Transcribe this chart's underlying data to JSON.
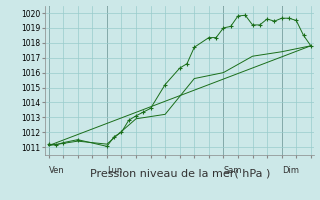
{
  "background_color": "#cce8e8",
  "grid_color": "#99cccc",
  "line_color": "#1a6e1a",
  "title": "Pression niveau de la mer( hPa )",
  "title_fontsize": 8,
  "ylim": [
    1010.5,
    1020.5
  ],
  "yticks": [
    1011,
    1012,
    1013,
    1014,
    1015,
    1016,
    1017,
    1018,
    1019,
    1020
  ],
  "ytick_fontsize": 5.5,
  "day_labels": [
    "Ven",
    "Lun",
    "Sam",
    "Dim"
  ],
  "day_positions": [
    0,
    8,
    24,
    32
  ],
  "xlim": [
    -0.5,
    36.5
  ],
  "series1_x": [
    0,
    1,
    2,
    4,
    8,
    9,
    10,
    11,
    12,
    13,
    14,
    16,
    18,
    19,
    20,
    22,
    23,
    24,
    25,
    26,
    27,
    28,
    29,
    30,
    31,
    32,
    33,
    34,
    35,
    36
  ],
  "series1_y": [
    1011.2,
    1011.15,
    1011.3,
    1011.5,
    1011.05,
    1011.7,
    1012.0,
    1012.8,
    1013.1,
    1013.35,
    1013.6,
    1015.2,
    1016.3,
    1016.6,
    1017.7,
    1018.35,
    1018.35,
    1019.0,
    1019.1,
    1019.8,
    1019.85,
    1019.2,
    1019.2,
    1019.6,
    1019.45,
    1019.65,
    1019.65,
    1019.5,
    1018.5,
    1017.8
  ],
  "series2_x": [
    0,
    4,
    8,
    12,
    16,
    20,
    24,
    28,
    32,
    36
  ],
  "series2_y": [
    1011.1,
    1011.4,
    1011.2,
    1012.9,
    1013.2,
    1015.6,
    1016.0,
    1017.1,
    1017.4,
    1017.8
  ],
  "series3_x": [
    0,
    36
  ],
  "series3_y": [
    1011.1,
    1017.8
  ]
}
